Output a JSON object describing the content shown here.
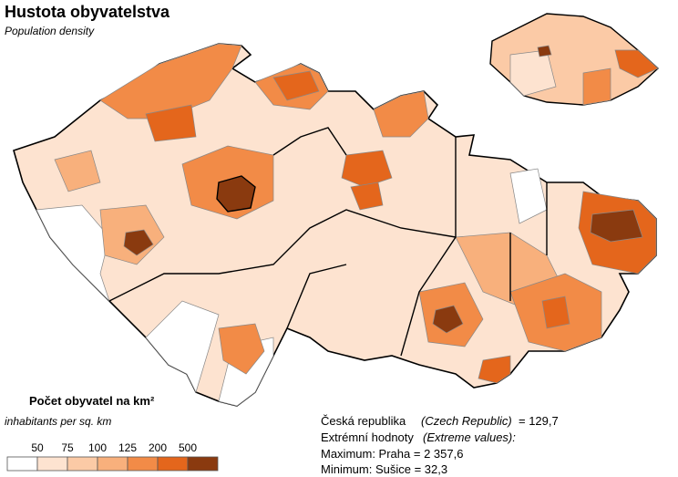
{
  "header": {
    "title": "Hustota obyvatelstva",
    "subtitle": "Population density"
  },
  "legend": {
    "title": "Počet obyvatel na km²",
    "subtitle": "inhabitants per sq. km",
    "breaks": [
      50,
      75,
      100,
      125,
      200,
      500
    ],
    "colors": [
      "#ffffff",
      "#fde3d0",
      "#fbcaa6",
      "#f8b07c",
      "#f28b47",
      "#e4661c",
      "#8a3a0f"
    ]
  },
  "stats": {
    "country": "Česká republika",
    "country_en": "(Czech Republic)",
    "country_value": "= 129,7",
    "extremes": "Extrémní hodnoty",
    "extremes_en": "(Extreme values):",
    "maximum": "Maximum: Praha = 2 357,6",
    "minimum": "Minimum: Sušice = 32,3"
  }
}
